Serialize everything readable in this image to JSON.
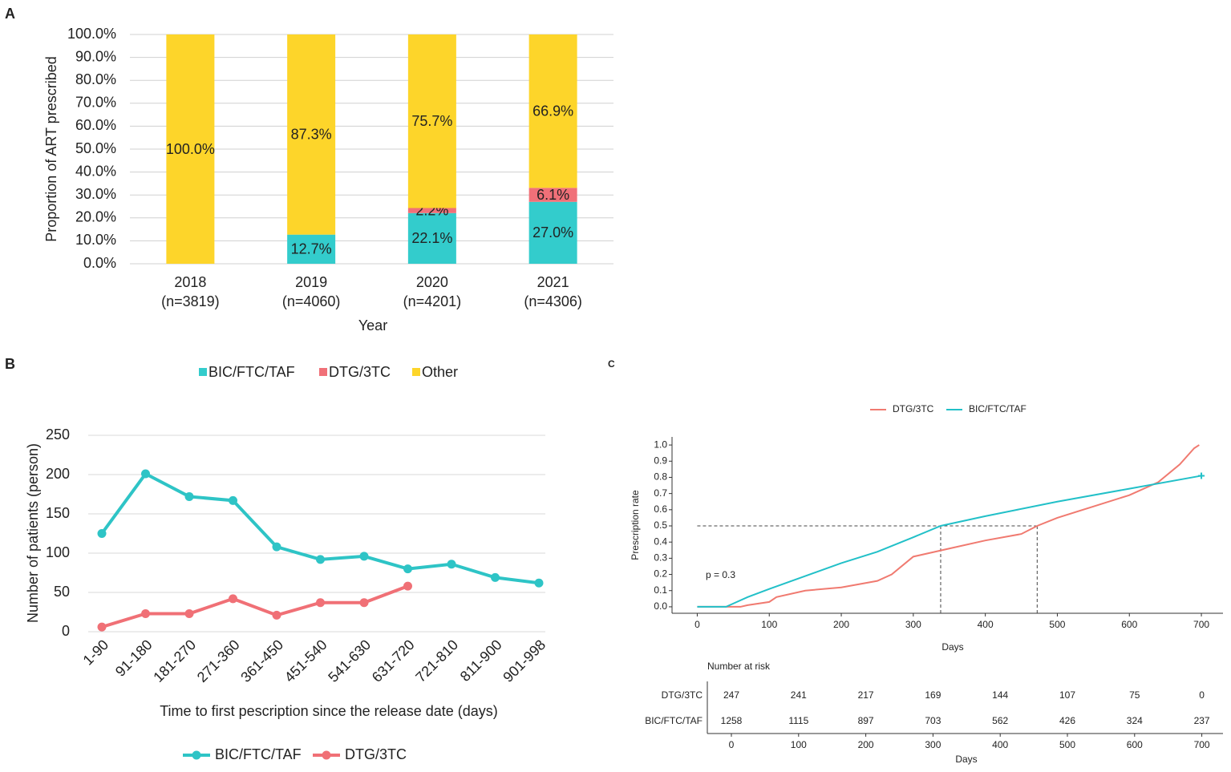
{
  "chart_data": [
    {
      "panel": "A",
      "type": "bar",
      "stacked": true,
      "categories": [
        "2018",
        "2019",
        "2020",
        "2021"
      ],
      "category_notes": [
        "(n=3819)",
        "(n=4060)",
        "(n=4201)",
        "(n=4306)"
      ],
      "xlabel": "Year",
      "ylabel": "Proportion of ART prescribed",
      "ylim": [
        0,
        100
      ],
      "yticks": [
        {
          "value": 0,
          "label": "0.0%"
        },
        {
          "value": 10,
          "label": "10.0%"
        },
        {
          "value": 20,
          "label": "20.0%"
        },
        {
          "value": 30,
          "label": "30.0%"
        },
        {
          "value": 40,
          "label": "40.0%"
        },
        {
          "value": 50,
          "label": "50.0%"
        },
        {
          "value": 60,
          "label": "60.0%"
        },
        {
          "value": 70,
          "label": "70.0%"
        },
        {
          "value": 80,
          "label": "80.0%"
        },
        {
          "value": 90,
          "label": "90.0%"
        },
        {
          "value": 100,
          "label": "100.0%"
        }
      ],
      "grid": true,
      "legend": "bottom",
      "series": [
        {
          "name": "BIC/FTC/TAF",
          "color": "#33cccc",
          "values": [
            null,
            12.7,
            22.1,
            27.0
          ],
          "value_labels": [
            null,
            "12.7%",
            "22.1%",
            "27.0%"
          ]
        },
        {
          "name": "DTG/3TC",
          "color": "#f07078",
          "values": [
            null,
            null,
            2.2,
            6.1
          ],
          "value_labels": [
            null,
            null,
            "2.2%",
            "6.1%"
          ]
        },
        {
          "name": "Other",
          "color": "#fdd52a",
          "values": [
            100,
            87.3,
            75.7,
            66.9
          ],
          "value_labels": [
            "100.0%",
            "87.3%",
            "75.7%",
            "66.9%"
          ]
        }
      ]
    },
    {
      "panel": "B",
      "type": "line",
      "categories": [
        "1-90",
        "91-180",
        "181-270",
        "271-360",
        "361-450",
        "451-540",
        "541-630",
        "631-720",
        "721-810",
        "811-900",
        "901-998"
      ],
      "xlabel": "Time to first pescription since the release date (days)",
      "ylabel": "Number of patients (person)",
      "ylim": [
        0,
        250
      ],
      "yticks": [
        0,
        50,
        100,
        150,
        200,
        250
      ],
      "grid": true,
      "legend": "bottom",
      "series": [
        {
          "name": "BIC/FTC/TAF",
          "color": "#2ec4c6",
          "values": [
            125,
            201,
            172,
            167,
            108,
            92,
            96,
            80,
            86,
            69,
            62
          ]
        },
        {
          "name": "DTG/3TC",
          "color": "#f07076",
          "values": [
            6,
            23,
            23,
            42,
            21,
            37,
            37,
            58,
            null,
            null,
            null
          ]
        }
      ]
    },
    {
      "panel": "C",
      "type": "km",
      "xlabel": "Days",
      "ylabel": "Prescription rate",
      "annotation": "p = 0.3",
      "legend": "top",
      "xlim": [
        -35,
        730
      ],
      "xticks": [
        0,
        100,
        200,
        300,
        400,
        500,
        600,
        700
      ],
      "ylim": [
        -0.04,
        1.05
      ],
      "yticks": [
        {
          "value": 0,
          "label": "0.0"
        },
        0.1,
        0.2,
        0.3,
        0.4,
        0.5,
        0.6,
        0.7,
        0.8,
        0.9,
        {
          "value": 1,
          "label": "1.0"
        }
      ],
      "reference_lines": {
        "y": 0.5,
        "x": [
          338,
          472
        ]
      },
      "series": [
        {
          "name": "DTG/3TC",
          "color": "#f07a70",
          "x": [
            0,
            60,
            70,
            100,
            110,
            150,
            200,
            250,
            270,
            300,
            350,
            400,
            450,
            472,
            500,
            550,
            600,
            640,
            670,
            690,
            697
          ],
          "values": [
            0,
            0,
            0.01,
            0.03,
            0.06,
            0.1,
            0.12,
            0.16,
            0.2,
            0.31,
            0.36,
            0.41,
            0.45,
            0.5,
            0.55,
            0.62,
            0.69,
            0.77,
            0.88,
            0.98,
            1.0
          ]
        },
        {
          "name": "BIC/FTC/TAF",
          "color": "#22c0c8",
          "x": [
            0,
            40,
            50,
            70,
            100,
            150,
            200,
            250,
            300,
            338,
            400,
            500,
            600,
            700
          ],
          "values": [
            0,
            0,
            0.02,
            0.06,
            0.11,
            0.19,
            0.27,
            0.34,
            0.43,
            0.5,
            0.56,
            0.65,
            0.73,
            0.81
          ]
        }
      ],
      "risk_table": {
        "title": "Number at risk",
        "xlabel": "Days",
        "times": [
          0,
          100,
          200,
          300,
          400,
          500,
          600,
          700
        ],
        "rows": [
          {
            "name": "DTG/3TC",
            "values": [
              247,
              241,
              217,
              169,
              144,
              107,
              75,
              0
            ]
          },
          {
            "name": "BIC/FTC/TAF",
            "values": [
              1258,
              1115,
              897,
              703,
              562,
              426,
              324,
              237
            ]
          }
        ]
      }
    }
  ]
}
